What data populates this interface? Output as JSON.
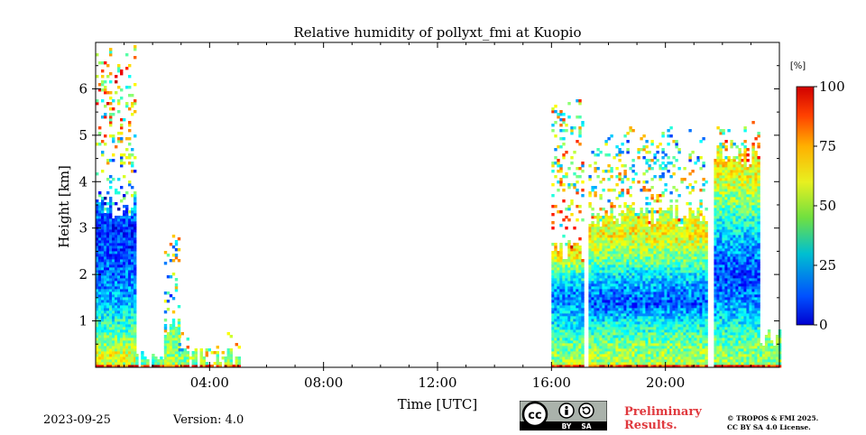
{
  "chart_data": {
    "type": "heatmap",
    "title": "Relative humidity of pollyxt_fmi at Kuopio",
    "xlabel": "Time [UTC]",
    "ylabel": "Height [km]",
    "xlim": [
      0,
      24
    ],
    "ylim": [
      0,
      7
    ],
    "x_ticks": [
      {
        "value": 4,
        "label": "04:00"
      },
      {
        "value": 8,
        "label": "08:00"
      },
      {
        "value": 12,
        "label": "12:00"
      },
      {
        "value": 16,
        "label": "16:00"
      },
      {
        "value": 20,
        "label": "20:00"
      }
    ],
    "y_ticks": [
      {
        "value": 1,
        "label": "1"
      },
      {
        "value": 2,
        "label": "2"
      },
      {
        "value": 3,
        "label": "3"
      },
      {
        "value": 4,
        "label": "4"
      },
      {
        "value": 5,
        "label": "5"
      },
      {
        "value": 6,
        "label": "6"
      }
    ],
    "colorbar": {
      "unit": "[%]",
      "range": [
        0,
        100
      ],
      "ticks": [
        {
          "value": 0,
          "label": "0"
        },
        {
          "value": 25,
          "label": "25"
        },
        {
          "value": 50,
          "label": "50"
        },
        {
          "value": 75,
          "label": "75"
        },
        {
          "value": 100,
          "label": "100"
        }
      ],
      "colormap": "jet"
    },
    "profiles": [
      {
        "t": [
          0.0,
          1.4
        ],
        "data_top_km": 6.8,
        "dense_top_km": 3.5,
        "humidity_by_height": [
          [
            0.0,
            55
          ],
          [
            0.3,
            60
          ],
          [
            0.8,
            45
          ],
          [
            1.5,
            30
          ],
          [
            2.2,
            22
          ],
          [
            3.0,
            15
          ],
          [
            3.8,
            35
          ],
          [
            5.0,
            55
          ],
          [
            6.5,
            70
          ]
        ]
      },
      {
        "t": [
          1.4,
          2.4
        ],
        "data_top_km": 0.2,
        "dense_top_km": 0.2,
        "humidity_by_height": [
          [
            0.0,
            48
          ],
          [
            0.2,
            45
          ]
        ]
      },
      {
        "t": [
          2.4,
          2.9
        ],
        "data_top_km": 2.8,
        "dense_top_km": 0.9,
        "humidity_by_height": [
          [
            0.0,
            55
          ],
          [
            0.5,
            50
          ],
          [
            1.5,
            45
          ],
          [
            2.8,
            50
          ]
        ]
      },
      {
        "t": [
          2.9,
          5.0
        ],
        "data_top_km": 0.6,
        "dense_top_km": 0.2,
        "humidity_by_height": [
          [
            0.0,
            50
          ],
          [
            0.6,
            50
          ]
        ]
      },
      {
        "t": [
          16.0,
          17.1
        ],
        "data_top_km": 5.6,
        "dense_top_km": 2.5,
        "humidity_by_height": [
          [
            0.0,
            55
          ],
          [
            0.5,
            48
          ],
          [
            1.0,
            35
          ],
          [
            1.6,
            25
          ],
          [
            2.0,
            40
          ],
          [
            2.5,
            65
          ],
          [
            4.0,
            55
          ]
        ]
      },
      {
        "t": [
          17.3,
          21.4
        ],
        "data_top_km": 5.0,
        "dense_top_km": 3.3,
        "humidity_by_height": [
          [
            0.0,
            55
          ],
          [
            0.5,
            50
          ],
          [
            1.0,
            38
          ],
          [
            1.4,
            20
          ],
          [
            1.9,
            32
          ],
          [
            2.4,
            50
          ],
          [
            2.9,
            62
          ],
          [
            3.5,
            55
          ],
          [
            4.5,
            45
          ]
        ]
      },
      {
        "t": [
          21.7,
          23.3
        ],
        "data_top_km": 5.2,
        "dense_top_km": 4.6,
        "humidity_by_height": [
          [
            0.0,
            55
          ],
          [
            0.7,
            45
          ],
          [
            1.2,
            32
          ],
          [
            2.0,
            18
          ],
          [
            2.8,
            32
          ],
          [
            3.6,
            50
          ],
          [
            4.4,
            65
          ],
          [
            5.0,
            55
          ]
        ]
      },
      {
        "t": [
          23.3,
          24.0
        ],
        "data_top_km": 0.7,
        "dense_top_km": 0.7,
        "humidity_by_height": [
          [
            0.0,
            50
          ],
          [
            0.7,
            50
          ]
        ]
      }
    ],
    "gaps_utc": [
      [
        17.1,
        17.3
      ],
      [
        21.4,
        21.7
      ]
    ],
    "grid": false,
    "legend": "none"
  },
  "footer": {
    "date": "2023-09-25",
    "version": "Version: 4.0",
    "preliminary": [
      "Preliminary",
      "Results."
    ],
    "copyright": [
      "© TROPOS & FMI 2025.",
      "CC BY SA 4.0 License."
    ],
    "license_badge": {
      "symbols": [
        "cc-icon",
        "by-icon",
        "sa-icon"
      ],
      "labels": [
        "BY",
        "SA"
      ]
    }
  }
}
